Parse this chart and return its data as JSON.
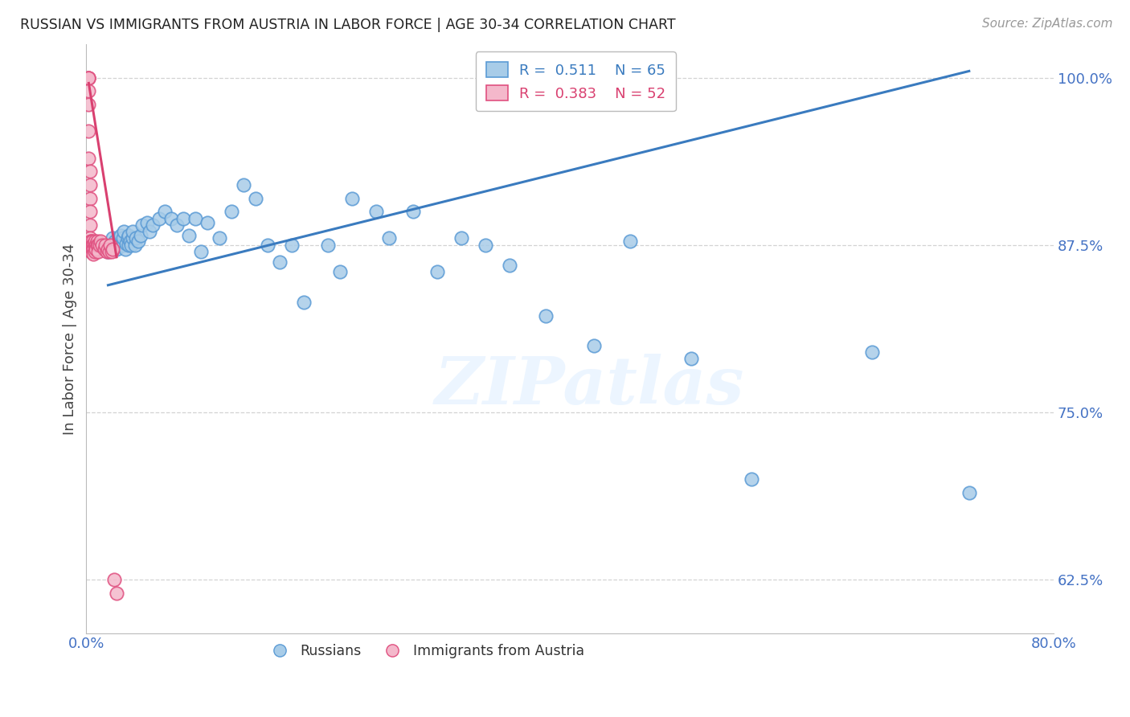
{
  "title": "RUSSIAN VS IMMIGRANTS FROM AUSTRIA IN LABOR FORCE | AGE 30-34 CORRELATION CHART",
  "source": "Source: ZipAtlas.com",
  "ylabel": "In Labor Force | Age 30-34",
  "xlim": [
    0.0,
    0.8
  ],
  "ylim": [
    0.585,
    1.025
  ],
  "yticks": [
    0.625,
    0.75,
    0.875,
    1.0
  ],
  "ytick_labels": [
    "62.5%",
    "75.0%",
    "87.5%",
    "100.0%"
  ],
  "xticks": [
    0.0,
    0.1,
    0.2,
    0.3,
    0.4,
    0.5,
    0.6,
    0.7,
    0.8
  ],
  "xtick_labels": [
    "0.0%",
    "",
    "",
    "",
    "",
    "",
    "",
    "",
    "80.0%"
  ],
  "blue_R": 0.511,
  "blue_N": 65,
  "pink_R": 0.383,
  "pink_N": 52,
  "blue_label": "Russians",
  "pink_label": "Immigrants from Austria",
  "blue_color": "#a8cce8",
  "pink_color": "#f4b8cb",
  "blue_edge_color": "#5b9bd5",
  "pink_edge_color": "#e05080",
  "blue_line_color": "#3a7bbf",
  "pink_line_color": "#d94070",
  "axis_color": "#4472C4",
  "watermark": "ZIPatlas",
  "title_color": "#222222",
  "background_color": "#ffffff",
  "grid_color": "#c8c8c8",
  "blue_x": [
    0.018,
    0.02,
    0.022,
    0.022,
    0.023,
    0.024,
    0.025,
    0.026,
    0.027,
    0.028,
    0.028,
    0.03,
    0.03,
    0.031,
    0.032,
    0.033,
    0.034,
    0.035,
    0.035,
    0.036,
    0.037,
    0.038,
    0.038,
    0.04,
    0.041,
    0.043,
    0.045,
    0.046,
    0.05,
    0.052,
    0.055,
    0.06,
    0.065,
    0.07,
    0.075,
    0.08,
    0.085,
    0.09,
    0.095,
    0.1,
    0.11,
    0.12,
    0.13,
    0.14,
    0.15,
    0.16,
    0.17,
    0.18,
    0.2,
    0.21,
    0.22,
    0.24,
    0.25,
    0.27,
    0.29,
    0.31,
    0.33,
    0.35,
    0.38,
    0.42,
    0.45,
    0.5,
    0.55,
    0.65,
    0.73
  ],
  "blue_y": [
    0.87,
    0.875,
    0.875,
    0.88,
    0.875,
    0.878,
    0.872,
    0.875,
    0.88,
    0.875,
    0.882,
    0.875,
    0.88,
    0.885,
    0.872,
    0.876,
    0.88,
    0.875,
    0.882,
    0.878,
    0.875,
    0.88,
    0.885,
    0.875,
    0.88,
    0.878,
    0.882,
    0.89,
    0.892,
    0.885,
    0.89,
    0.895,
    0.9,
    0.895,
    0.89,
    0.895,
    0.882,
    0.895,
    0.87,
    0.892,
    0.88,
    0.9,
    0.92,
    0.91,
    0.875,
    0.862,
    0.875,
    0.832,
    0.875,
    0.855,
    0.91,
    0.9,
    0.88,
    0.9,
    0.855,
    0.88,
    0.875,
    0.86,
    0.822,
    0.8,
    0.878,
    0.79,
    0.7,
    0.795,
    0.69
  ],
  "pink_x": [
    0.002,
    0.002,
    0.002,
    0.002,
    0.002,
    0.002,
    0.002,
    0.002,
    0.003,
    0.003,
    0.003,
    0.003,
    0.003,
    0.003,
    0.003,
    0.004,
    0.004,
    0.004,
    0.004,
    0.004,
    0.004,
    0.005,
    0.005,
    0.005,
    0.005,
    0.005,
    0.005,
    0.006,
    0.006,
    0.006,
    0.007,
    0.007,
    0.007,
    0.008,
    0.008,
    0.009,
    0.009,
    0.01,
    0.01,
    0.011,
    0.012,
    0.013,
    0.015,
    0.016,
    0.017,
    0.018,
    0.019,
    0.02,
    0.021,
    0.022,
    0.023,
    0.025
  ],
  "pink_y": [
    1.0,
    1.0,
    1.0,
    1.0,
    0.99,
    0.98,
    0.96,
    0.94,
    0.93,
    0.92,
    0.91,
    0.9,
    0.89,
    0.88,
    0.875,
    0.878,
    0.875,
    0.872,
    0.875,
    0.878,
    0.87,
    0.872,
    0.875,
    0.878,
    0.875,
    0.872,
    0.875,
    0.875,
    0.872,
    0.868,
    0.875,
    0.878,
    0.87,
    0.875,
    0.872,
    0.878,
    0.875,
    0.875,
    0.87,
    0.875,
    0.878,
    0.875,
    0.872,
    0.875,
    0.87,
    0.872,
    0.87,
    0.875,
    0.87,
    0.872,
    0.625,
    0.615
  ],
  "blue_trend_x": [
    0.018,
    0.73
  ],
  "blue_trend_y": [
    0.845,
    1.005
  ],
  "pink_trend_x": [
    0.002,
    0.025
  ],
  "pink_trend_y": [
    0.996,
    0.866
  ]
}
